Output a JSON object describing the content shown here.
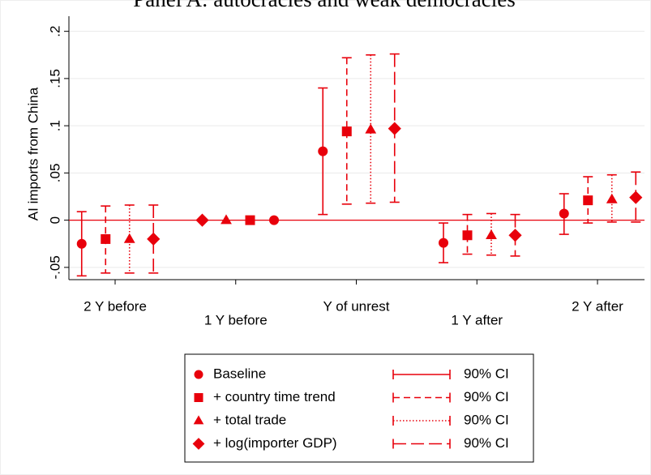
{
  "chart_data": {
    "type": "coefplot",
    "title": "Panel A: autocracies and weak democracies",
    "y_label": "AI imports from China",
    "categories": [
      "2 Y before",
      "1 Y before",
      "Y of unrest",
      "1 Y after",
      "2 Y after"
    ],
    "series": [
      {
        "name": "Baseline",
        "color": "#e8000b",
        "marker": "circle",
        "line_style": "solid",
        "ci_label": "90% CI",
        "values": [
          -0.025,
          0,
          0.073,
          -0.024,
          0.007
        ],
        "lower": [
          -0.059,
          null,
          0.006,
          -0.045,
          -0.015
        ],
        "upper": [
          0.009,
          null,
          0.14,
          -0.003,
          0.028
        ]
      },
      {
        "name": "+ country time trend",
        "color": "#e8000b",
        "marker": "square",
        "line_style": "dashed",
        "ci_label": "90% CI",
        "values": [
          -0.02,
          0,
          0.094,
          -0.016,
          0.021
        ],
        "lower": [
          -0.056,
          null,
          0.017,
          -0.036,
          -0.003
        ],
        "upper": [
          0.015,
          null,
          0.172,
          0.006,
          0.046
        ]
      },
      {
        "name": "+ total trade",
        "color": "#e8000b",
        "marker": "triangle",
        "line_style": "dotted",
        "ci_label": "90% CI",
        "values": [
          -0.02,
          0,
          0.096,
          -0.016,
          0.022
        ],
        "lower": [
          -0.056,
          null,
          0.018,
          -0.037,
          -0.002
        ],
        "upper": [
          0.016,
          null,
          0.175,
          0.007,
          0.048
        ]
      },
      {
        "name": "+ log(importer GDP)",
        "color": "#e8000b",
        "marker": "diamond",
        "line_style": "longdash",
        "ci_label": "90% CI",
        "values": [
          -0.02,
          0,
          0.097,
          -0.016,
          0.024
        ],
        "lower": [
          -0.056,
          null,
          0.019,
          -0.038,
          -0.002
        ],
        "upper": [
          0.016,
          null,
          0.176,
          0.006,
          0.051
        ]
      }
    ],
    "ylim": [
      -0.063,
      0.216
    ],
    "yticks": [
      {
        "value": -0.05,
        "label": "-.05"
      },
      0,
      {
        "value": 0.05,
        "label": ".05"
      },
      {
        "value": 0.1,
        "label": ".1"
      },
      {
        "value": 0.15,
        "label": ".15"
      },
      {
        "value": 0.2,
        "label": ".2"
      }
    ],
    "grid": true
  }
}
